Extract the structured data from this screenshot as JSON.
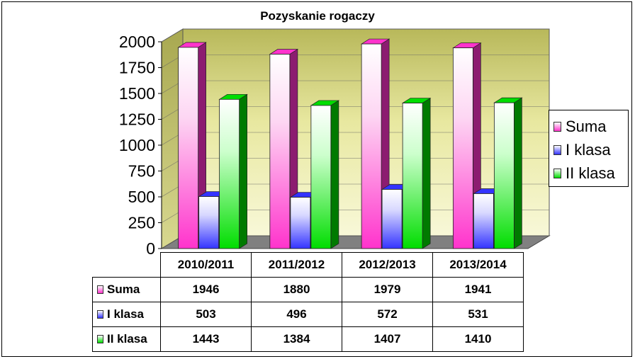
{
  "chart_data": {
    "type": "bar",
    "title": "Pozyskanie rogaczy",
    "categories": [
      "2010/2011",
      "2011/2012",
      "2012/2013",
      "2013/2014"
    ],
    "series": [
      {
        "name": "Suma",
        "values": [
          1946,
          1880,
          1979,
          1941
        ],
        "color": "#ff33cc"
      },
      {
        "name": "I klasa",
        "values": [
          503,
          496,
          572,
          531
        ],
        "color": "#3333ff"
      },
      {
        "name": "II klasa",
        "values": [
          1443,
          1384,
          1407,
          1410
        ],
        "color": "#00dd00"
      }
    ],
    "ylim": [
      0,
      2000
    ],
    "yticks": [
      "0",
      "250",
      "500",
      "750",
      "1000",
      "1250",
      "1500",
      "1750",
      "2000"
    ],
    "legend": "right",
    "data_table": true,
    "wall_color": "#e6e69a",
    "floor_color": "#808080"
  }
}
